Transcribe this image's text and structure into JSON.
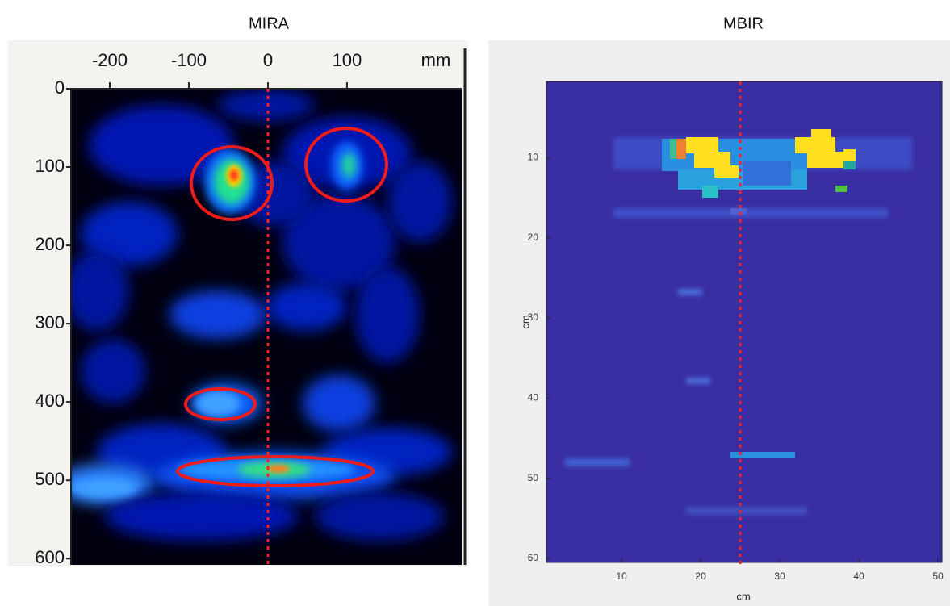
{
  "chart_data": [
    {
      "type": "image",
      "title": "MIRA",
      "x_label": "mm",
      "xlim": [
        -249,
        245
      ],
      "xticks": [
        -200,
        -100,
        0,
        100
      ],
      "ylim": [
        0,
        608
      ],
      "yticks": [
        0,
        100,
        200,
        300,
        400,
        500,
        600
      ],
      "vline": 0,
      "vline_color": "#ff2020"
    },
    {
      "type": "image",
      "title": "MBIR",
      "x_label": "cm",
      "y_label": "cm",
      "xlim": [
        0.5,
        50.5
      ],
      "xticks": [
        10,
        20,
        30,
        40,
        50
      ],
      "ylim": [
        0.5,
        60.5
      ],
      "yticks": [
        10,
        20,
        30,
        40,
        50,
        60
      ],
      "vline": 25,
      "vline_color": "#ff2020"
    }
  ]
}
